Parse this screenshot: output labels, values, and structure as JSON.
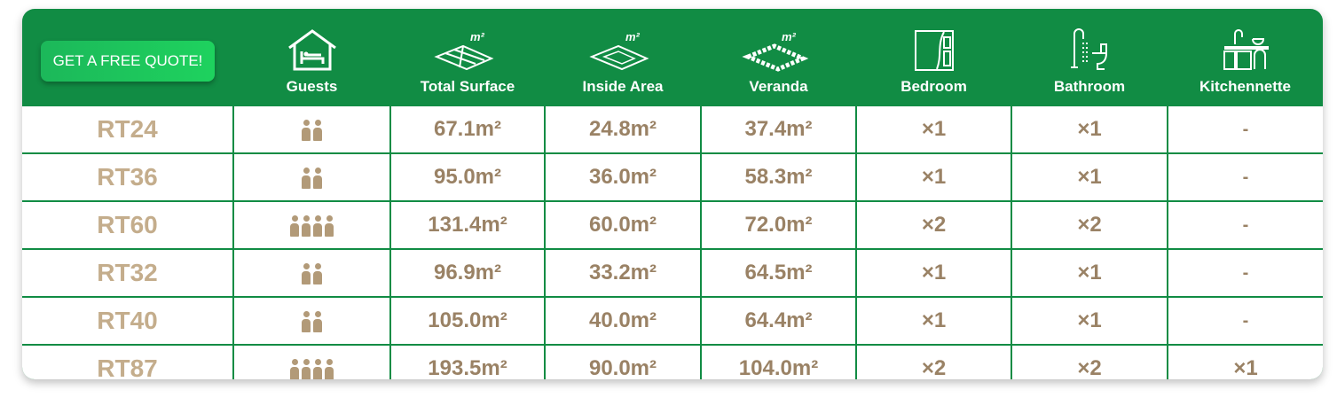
{
  "quote_button": "GET A FREE QUOTE!",
  "headers": [
    {
      "label": "Guests",
      "icon": "house-bed-icon"
    },
    {
      "label": "Total Surface",
      "icon": "floor-area-icon",
      "unit": "m²"
    },
    {
      "label": "Inside Area",
      "icon": "inside-area-icon",
      "unit": "m²"
    },
    {
      "label": "Veranda",
      "icon": "veranda-icon",
      "unit": "m²"
    },
    {
      "label": "Bedroom",
      "icon": "wardrobe-icon"
    },
    {
      "label": "Bathroom",
      "icon": "shower-toilet-icon"
    },
    {
      "label": "Kitchennette",
      "icon": "kitchen-icon"
    }
  ],
  "colors": {
    "header": "#118c44",
    "name": "#c4ad8c",
    "value": "#9a8265"
  },
  "rows": [
    {
      "name": "RT24",
      "guests": 2,
      "total": "67.1m²",
      "inside": "24.8m²",
      "veranda": "37.4m²",
      "bedroom": "×1",
      "bathroom": "×1",
      "kitchen": "-"
    },
    {
      "name": "RT36",
      "guests": 2,
      "total": "95.0m²",
      "inside": "36.0m²",
      "veranda": "58.3m²",
      "bedroom": "×1",
      "bathroom": "×1",
      "kitchen": "-"
    },
    {
      "name": "RT60",
      "guests": 4,
      "total": "131.4m²",
      "inside": "60.0m²",
      "veranda": "72.0m²",
      "bedroom": "×2",
      "bathroom": "×2",
      "kitchen": "-"
    },
    {
      "name": "RT32",
      "guests": 2,
      "total": "96.9m²",
      "inside": "33.2m²",
      "veranda": "64.5m²",
      "bedroom": "×1",
      "bathroom": "×1",
      "kitchen": "-"
    },
    {
      "name": "RT40",
      "guests": 2,
      "total": "105.0m²",
      "inside": "40.0m²",
      "veranda": "64.4m²",
      "bedroom": "×1",
      "bathroom": "×1",
      "kitchen": "-"
    },
    {
      "name": "RT87",
      "guests": 4,
      "total": "193.5m²",
      "inside": "90.0m²",
      "veranda": "104.0m²",
      "bedroom": "×2",
      "bathroom": "×2",
      "kitchen": "×1"
    }
  ]
}
